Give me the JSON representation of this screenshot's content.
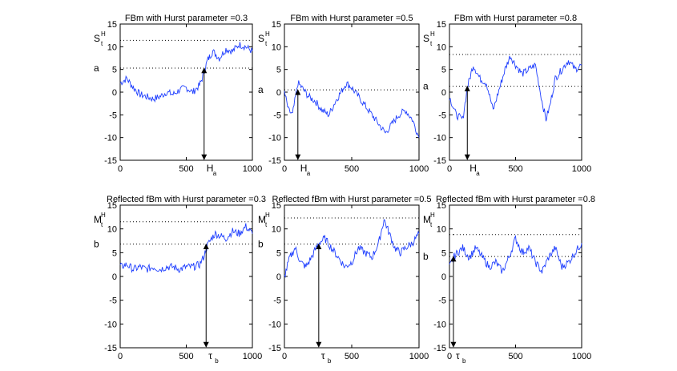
{
  "colors": {
    "series": "#1f3fff",
    "axis": "#000000",
    "reference": "#000000"
  },
  "chart_data": [
    {
      "type": "line",
      "title": "FBm with Hurst parameter =0.3",
      "xlim": [
        0,
        1000
      ],
      "ylim": [
        -15,
        15
      ],
      "xticks": [
        0,
        500,
        1000
      ],
      "yticks": [
        -15,
        -10,
        -5,
        0,
        5,
        10,
        15
      ],
      "y_label": "S",
      "y_label_sup": "H",
      "y_label_sub": "t",
      "level_label": "a",
      "level": 5.3,
      "upper_dotted": 11.4,
      "arrow_x": 635,
      "arrow_label": "H",
      "arrow_label_sub": "a",
      "series": [
        {
          "name": "",
          "x": [
            0,
            50,
            100,
            150,
            200,
            250,
            300,
            350,
            400,
            450,
            500,
            550,
            600,
            620,
            640,
            660,
            680,
            700,
            750,
            800,
            850,
            900,
            950,
            1000
          ],
          "y": [
            2,
            3,
            1,
            -0.5,
            -1,
            -1.5,
            -1,
            0,
            -0.5,
            0.5,
            1,
            0,
            1.5,
            3,
            5,
            7,
            8,
            9,
            7.5,
            9.5,
            9,
            10.5,
            10,
            9
          ]
        }
      ]
    },
    {
      "type": "line",
      "title": "FBm with Hurst parameter =0.5",
      "xlim": [
        0,
        1000
      ],
      "ylim": [
        -15,
        15
      ],
      "xticks": [
        0,
        500,
        1000
      ],
      "yticks": [
        -15,
        -10,
        -5,
        0,
        5,
        10,
        15
      ],
      "y_label": "S",
      "y_label_sup": "H",
      "y_label_sub": "t",
      "level_label": "a",
      "level": 0.5,
      "upper_dotted": null,
      "arrow_x": 100,
      "arrow_label": "H",
      "arrow_label_sub": "a",
      "series": [
        {
          "name": "",
          "x": [
            0,
            30,
            60,
            100,
            130,
            180,
            230,
            280,
            330,
            380,
            420,
            460,
            500,
            550,
            600,
            650,
            700,
            750,
            800,
            850,
            900,
            950,
            1000
          ],
          "y": [
            0,
            -4,
            -5,
            2,
            1,
            -1,
            -2,
            -4,
            -5,
            -2,
            0,
            2,
            1,
            -1,
            -3,
            -5,
            -7,
            -9,
            -7,
            -5,
            -4,
            -6,
            -10
          ]
        }
      ]
    },
    {
      "type": "line",
      "title": "FBm with Hurst parameter =0.8",
      "xlim": [
        0,
        1000
      ],
      "ylim": [
        -15,
        15
      ],
      "xticks": [
        0,
        500,
        1000
      ],
      "yticks": [
        -15,
        -10,
        -5,
        0,
        5,
        10,
        15
      ],
      "y_label": "S",
      "y_label_sup": "H",
      "y_label_sub": "t",
      "level_label": "a",
      "level": 1.3,
      "upper_dotted": 8.3,
      "arrow_x": 135,
      "arrow_label": "H",
      "arrow_label_sub": "a",
      "series": [
        {
          "name": "",
          "x": [
            0,
            50,
            100,
            135,
            180,
            230,
            280,
            330,
            380,
            420,
            460,
            500,
            550,
            600,
            650,
            700,
            730,
            760,
            800,
            850,
            900,
            950,
            1000
          ],
          "y": [
            -1,
            -5,
            -6,
            1,
            6,
            3,
            2,
            -4,
            1,
            5,
            8,
            6,
            4,
            5,
            6,
            -2,
            -6,
            -3,
            3,
            5,
            7,
            5,
            6
          ]
        }
      ]
    },
    {
      "type": "line",
      "title": "Reflected fBm with Hurst parameter =0.3",
      "xlim": [
        0,
        1000
      ],
      "ylim": [
        -15,
        15
      ],
      "xticks": [
        0,
        500,
        1000
      ],
      "yticks": [
        -15,
        -10,
        -5,
        0,
        5,
        10,
        15
      ],
      "y_label": "M",
      "y_label_sup": "H",
      "y_label_sub": "t",
      "level_label": "b",
      "level": 6.8,
      "upper_dotted": 11.5,
      "arrow_x": 650,
      "arrow_label": "τ",
      "arrow_label_sub": "b",
      "series": [
        {
          "name": "",
          "x": [
            0,
            50,
            100,
            150,
            200,
            250,
            300,
            350,
            400,
            450,
            500,
            550,
            600,
            630,
            660,
            690,
            720,
            760,
            800,
            850,
            900,
            950,
            1000
          ],
          "y": [
            2,
            2.5,
            1.5,
            2,
            1.5,
            2,
            1.5,
            2,
            2,
            1.5,
            2,
            2,
            2.5,
            4,
            6.5,
            8,
            9,
            8.5,
            8,
            9.5,
            9,
            10.5,
            9
          ]
        }
      ]
    },
    {
      "type": "line",
      "title": "Reflected fBm with Hurst parameter =0.5",
      "xlim": [
        0,
        1000
      ],
      "ylim": [
        -15,
        15
      ],
      "xticks": [
        0,
        500,
        1000
      ],
      "yticks": [
        -15,
        -10,
        -5,
        0,
        5,
        10,
        15
      ],
      "y_label": "M",
      "y_label_sup": "H",
      "y_label_sub": "t",
      "level_label": "b",
      "level": 6.8,
      "upper_dotted": 12.3,
      "arrow_x": 255,
      "arrow_label": "τ",
      "arrow_label_sub": "b",
      "series": [
        {
          "name": "",
          "x": [
            0,
            40,
            80,
            120,
            160,
            200,
            255,
            300,
            350,
            400,
            450,
            500,
            550,
            600,
            650,
            700,
            740,
            780,
            820,
            860,
            900,
            950,
            1000
          ],
          "y": [
            0,
            4,
            6,
            3,
            2,
            4,
            7,
            8,
            6,
            4,
            2,
            3,
            6,
            5,
            4,
            7,
            12,
            9,
            6,
            5,
            6,
            7,
            9
          ]
        }
      ]
    },
    {
      "type": "line",
      "title": "Reflected fBm with Hurst parameter =0.8",
      "xlim": [
        0,
        1000
      ],
      "ylim": [
        -15,
        15
      ],
      "xticks": [
        0,
        500,
        1000
      ],
      "yticks": [
        -15,
        -10,
        -5,
        0,
        5,
        10,
        15
      ],
      "y_label": "M",
      "y_label_sup": "H",
      "y_label_sub": "t",
      "level_label": "b",
      "level": 4.2,
      "upper_dotted": 8.8,
      "arrow_x": 30,
      "arrow_label": "τ",
      "arrow_label_sub": "b",
      "series": [
        {
          "name": "",
          "x": [
            0,
            30,
            60,
            100,
            150,
            200,
            250,
            300,
            350,
            400,
            450,
            500,
            550,
            600,
            650,
            700,
            750,
            800,
            850,
            900,
            950,
            1000
          ],
          "y": [
            2,
            4,
            5,
            6,
            4,
            6,
            4,
            2,
            3,
            1,
            4,
            8,
            5,
            6,
            3,
            1,
            4,
            6,
            2,
            3,
            5,
            7
          ]
        }
      ]
    }
  ]
}
